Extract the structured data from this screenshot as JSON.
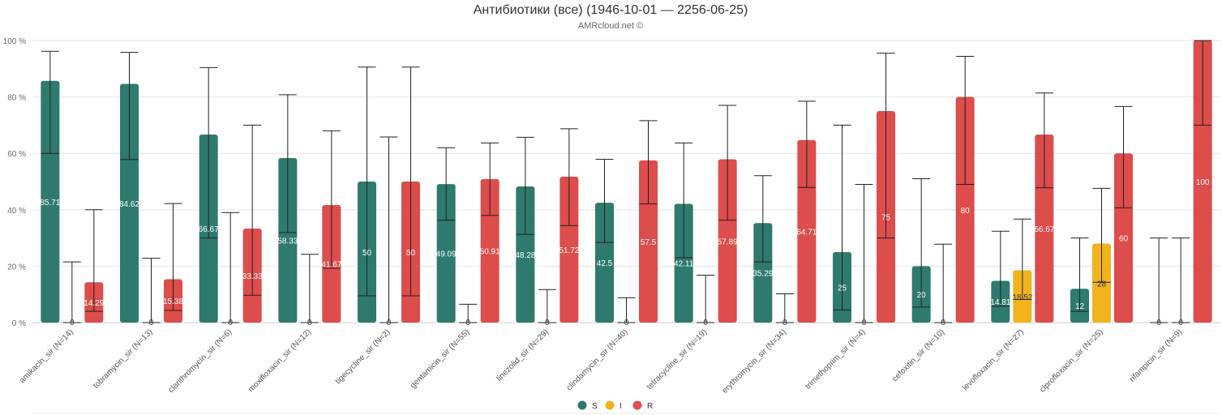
{
  "chart_data": {
    "type": "bar",
    "title": "Антибиотики (все) (1946-10-01 — 2256-06-25)",
    "subtitle": "AMRcloud.net ©",
    "categories": [
      "amikacin_sir (N=14)",
      "tobramycin_sir (N=13)",
      "clarithromycin_sir (N=6)",
      "moxifloxacin_sir (N=12)",
      "tigecycline_sir (N=2)",
      "gentamicin_sir (N=55)",
      "linezolid_sir (N=29)",
      "clindamycin_sir (N=40)",
      "tetracycline_sir (N=19)",
      "erythromycin_sir (N=34)",
      "trimethoprim_sir (N=4)",
      "cefoxitin_sir (N=10)",
      "levofloxacin_sir (N=27)",
      "ciprofloxacin_sir (N=25)",
      "rifampicin_sir (N=9)"
    ],
    "series": [
      {
        "name": "S",
        "color": "#2e7a6e",
        "values": [
          85.71,
          84.62,
          66.67,
          58.33,
          50,
          49.09,
          48.28,
          42.5,
          42.11,
          35.29,
          25,
          20,
          14.81,
          12,
          0
        ],
        "labels": [
          "85.71",
          "84.62",
          "66.67",
          "58.33",
          "50",
          "49.09",
          "48.28",
          "42.5",
          "42.11",
          "35.29",
          "25",
          "20",
          "14.81",
          "12",
          "0"
        ],
        "ci_low": [
          60,
          57.8,
          30,
          31.9,
          9.5,
          36.3,
          31.3,
          28.4,
          23,
          21.5,
          4.5,
          5.5,
          5.8,
          4,
          0
        ],
        "ci_high": [
          96.2,
          95.8,
          90.4,
          80.8,
          90.6,
          62,
          65.7,
          57.9,
          63.7,
          52.1,
          70,
          51,
          32.4,
          30,
          30
        ]
      },
      {
        "name": "I",
        "color": "#f0b31e",
        "values": [
          0,
          0,
          0,
          0,
          0,
          0,
          0,
          0,
          0,
          0,
          0,
          0,
          18.52,
          28,
          0
        ],
        "labels": [
          "0",
          "0",
          "0",
          "0",
          "0",
          "0",
          "0",
          "0",
          "0",
          "0",
          "0",
          "0",
          "18.52",
          "28",
          "0"
        ],
        "ci_low": [
          0,
          0,
          0,
          0,
          0,
          0,
          0,
          0,
          0,
          0,
          0,
          0,
          8.2,
          14.3,
          0
        ],
        "ci_high": [
          21.5,
          22.8,
          39,
          24.2,
          65.8,
          6.5,
          11.7,
          8.8,
          16.8,
          10.2,
          49,
          27.8,
          36.7,
          47.6,
          30
        ]
      },
      {
        "name": "R",
        "color": "#dc4d4b",
        "values": [
          14.29,
          15.38,
          33.33,
          41.67,
          50,
          50.91,
          51.72,
          57.5,
          57.89,
          64.71,
          75,
          80,
          66.67,
          60,
          100
        ],
        "labels": [
          "14.29",
          "15.38",
          "33.33",
          "41.67",
          "50",
          "50.91",
          "51.72",
          "57.5",
          "57.89",
          "64.71",
          "75",
          "80",
          "66.67",
          "60",
          "100"
        ],
        "ci_low": [
          4,
          4.3,
          9.7,
          19.3,
          9.5,
          38,
          34.4,
          42.1,
          36.3,
          47.9,
          30,
          49,
          47.8,
          40.7,
          70
        ],
        "ci_high": [
          40,
          42.2,
          70,
          68,
          90.6,
          63.7,
          68.7,
          71.6,
          77,
          78.5,
          95.5,
          94.4,
          81.4,
          76.6,
          100
        ]
      }
    ],
    "ylim": [
      0,
      100
    ],
    "yticks": [
      "0 %",
      "20 %",
      "40 %",
      "60 %",
      "80 %",
      "100 %"
    ],
    "grid": true,
    "legend_position": "bottom-center"
  }
}
